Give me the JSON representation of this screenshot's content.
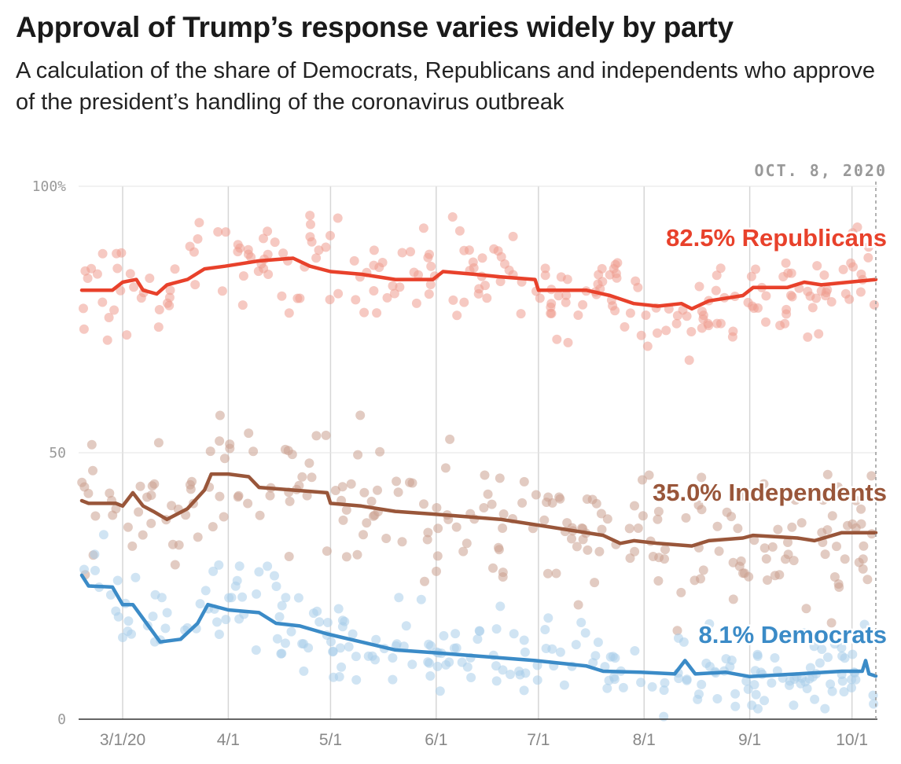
{
  "header": {
    "title": "Approval of Trump’s response varies widely by party",
    "subtitle": "A calculation of the share of Democrats, Republicans and independents who approve of the president’s handling of the coronavirus outbreak"
  },
  "chart_data": {
    "type": "line",
    "date_label": "OCT. 8, 2020",
    "x_start": "2020-02-18",
    "x_end": "2020-10-08",
    "x_ticks": [
      {
        "date": "2020-03-01",
        "label": "3/1/20"
      },
      {
        "date": "2020-04-01",
        "label": "4/1"
      },
      {
        "date": "2020-05-01",
        "label": "5/1"
      },
      {
        "date": "2020-06-01",
        "label": "6/1"
      },
      {
        "date": "2020-07-01",
        "label": "7/1"
      },
      {
        "date": "2020-08-01",
        "label": "8/1"
      },
      {
        "date": "2020-09-01",
        "label": "9/1"
      },
      {
        "date": "2020-10-01",
        "label": "10/1"
      }
    ],
    "y_ticks": [
      {
        "value": 0,
        "label": "0"
      },
      {
        "value": 50,
        "label": "50"
      },
      {
        "value": 100,
        "label": "100%"
      }
    ],
    "ylim": [
      0,
      100
    ],
    "grid": true,
    "series": [
      {
        "name": "Republicans",
        "label": "82.5% Republicans",
        "final_value": 82.5,
        "color": "#e8412b",
        "dot_color": "#ef9c8f",
        "points": [
          [
            "2020-02-18",
            80.5
          ],
          [
            "2020-02-27",
            80.5
          ],
          [
            "2020-03-01",
            82.0
          ],
          [
            "2020-03-05",
            82.5
          ],
          [
            "2020-03-07",
            80.5
          ],
          [
            "2020-03-11",
            79.8
          ],
          [
            "2020-03-14",
            81.5
          ],
          [
            "2020-03-20",
            82.5
          ],
          [
            "2020-03-25",
            84.5
          ],
          [
            "2020-03-31",
            85.0
          ],
          [
            "2020-04-05",
            85.5
          ],
          [
            "2020-04-10",
            86.0
          ],
          [
            "2020-04-20",
            86.5
          ],
          [
            "2020-04-25",
            85.0
          ],
          [
            "2020-05-01",
            84.0
          ],
          [
            "2020-05-10",
            83.5
          ],
          [
            "2020-05-20",
            82.5
          ],
          [
            "2020-05-31",
            82.5
          ],
          [
            "2020-06-03",
            84.0
          ],
          [
            "2020-06-12",
            83.5
          ],
          [
            "2020-06-20",
            83.0
          ],
          [
            "2020-06-30",
            82.5
          ],
          [
            "2020-07-01",
            80.5
          ],
          [
            "2020-07-15",
            80.5
          ],
          [
            "2020-07-22",
            79.5
          ],
          [
            "2020-07-29",
            78.0
          ],
          [
            "2020-08-05",
            77.5
          ],
          [
            "2020-08-12",
            78.0
          ],
          [
            "2020-08-15",
            77.0
          ],
          [
            "2020-08-20",
            78.5
          ],
          [
            "2020-08-30",
            79.5
          ],
          [
            "2020-09-02",
            81.0
          ],
          [
            "2020-09-12",
            81.0
          ],
          [
            "2020-09-17",
            82.0
          ],
          [
            "2020-09-22",
            81.5
          ],
          [
            "2020-09-30",
            82.0
          ],
          [
            "2020-10-08",
            82.5
          ]
        ]
      },
      {
        "name": "Independents",
        "label": "35.0% Independents",
        "final_value": 35.0,
        "color": "#99563a",
        "dot_color": "#cba190",
        "points": [
          [
            "2020-02-18",
            41.0
          ],
          [
            "2020-02-20",
            40.5
          ],
          [
            "2020-02-28",
            40.5
          ],
          [
            "2020-03-01",
            40.0
          ],
          [
            "2020-03-04",
            42.5
          ],
          [
            "2020-03-07",
            40.0
          ],
          [
            "2020-03-10",
            39.0
          ],
          [
            "2020-03-14",
            37.5
          ],
          [
            "2020-03-20",
            39.5
          ],
          [
            "2020-03-25",
            43.0
          ],
          [
            "2020-03-27",
            46.0
          ],
          [
            "2020-04-01",
            46.0
          ],
          [
            "2020-04-07",
            45.5
          ],
          [
            "2020-04-10",
            43.5
          ],
          [
            "2020-04-20",
            43.0
          ],
          [
            "2020-04-30",
            42.5
          ],
          [
            "2020-05-01",
            40.5
          ],
          [
            "2020-05-10",
            40.0
          ],
          [
            "2020-05-20",
            39.0
          ],
          [
            "2020-05-31",
            38.5
          ],
          [
            "2020-06-10",
            38.0
          ],
          [
            "2020-06-20",
            37.5
          ],
          [
            "2020-06-30",
            36.5
          ],
          [
            "2020-07-10",
            35.5
          ],
          [
            "2020-07-20",
            34.5
          ],
          [
            "2020-07-25",
            33.0
          ],
          [
            "2020-07-29",
            33.5
          ],
          [
            "2020-08-05",
            33.0
          ],
          [
            "2020-08-15",
            32.5
          ],
          [
            "2020-08-20",
            33.5
          ],
          [
            "2020-08-30",
            34.0
          ],
          [
            "2020-09-02",
            34.5
          ],
          [
            "2020-09-15",
            34.0
          ],
          [
            "2020-09-20",
            33.5
          ],
          [
            "2020-09-28",
            35.0
          ],
          [
            "2020-10-08",
            35.0
          ]
        ]
      },
      {
        "name": "Democrats",
        "label": "8.1% Democrats",
        "final_value": 8.1,
        "color": "#3b8bc7",
        "dot_color": "#a9cde9",
        "points": [
          [
            "2020-02-18",
            27.0
          ],
          [
            "2020-02-20",
            25.0
          ],
          [
            "2020-02-27",
            24.8
          ],
          [
            "2020-03-01",
            21.5
          ],
          [
            "2020-03-04",
            21.5
          ],
          [
            "2020-03-08",
            18.0
          ],
          [
            "2020-03-12",
            14.5
          ],
          [
            "2020-03-18",
            15.0
          ],
          [
            "2020-03-23",
            18.0
          ],
          [
            "2020-03-26",
            21.5
          ],
          [
            "2020-04-01",
            20.5
          ],
          [
            "2020-04-10",
            20.0
          ],
          [
            "2020-04-15",
            18.0
          ],
          [
            "2020-04-22",
            17.5
          ],
          [
            "2020-04-30",
            16.0
          ],
          [
            "2020-05-10",
            14.5
          ],
          [
            "2020-05-20",
            13.0
          ],
          [
            "2020-05-31",
            12.5
          ],
          [
            "2020-06-10",
            12.0
          ],
          [
            "2020-06-20",
            11.5
          ],
          [
            "2020-06-30",
            11.0
          ],
          [
            "2020-07-15",
            10.0
          ],
          [
            "2020-07-20",
            9.0
          ],
          [
            "2020-07-31",
            8.8
          ],
          [
            "2020-08-10",
            8.5
          ],
          [
            "2020-08-13",
            11.0
          ],
          [
            "2020-08-16",
            8.5
          ],
          [
            "2020-08-25",
            8.8
          ],
          [
            "2020-09-01",
            8.0
          ],
          [
            "2020-09-15",
            8.5
          ],
          [
            "2020-09-28",
            9.0
          ],
          [
            "2020-10-04",
            9.0
          ],
          [
            "2020-10-05",
            11.0
          ],
          [
            "2020-10-06",
            8.5
          ],
          [
            "2020-10-08",
            8.1
          ]
        ]
      }
    ]
  }
}
